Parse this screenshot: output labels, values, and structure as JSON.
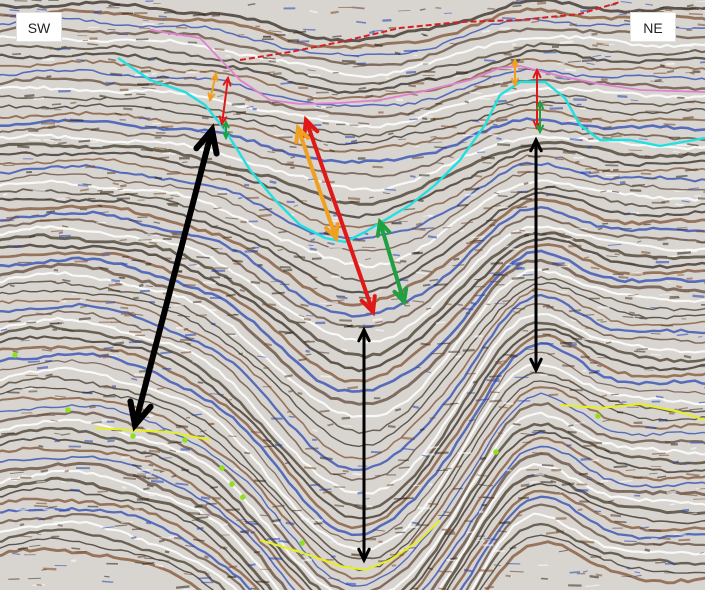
{
  "labels": {
    "southwest": "SW",
    "northeast": "NE"
  },
  "colors": {
    "background": "#d8d4cf",
    "reflector_dark": "#2a2016",
    "reflector_brown": "#7a4a2a",
    "reflector_blue": "#1f3fb0",
    "horizon_red": "#d42020",
    "horizon_pink": "#e080d0",
    "horizon_cyan": "#20e0e0",
    "horizon_yellow": "#e6f020",
    "marker_green": "#90e020",
    "arrow_black": "#000000",
    "arrow_red": "#e01818",
    "arrow_orange": "#f0a020",
    "arrow_green": "#20a040"
  },
  "icons": [
    "seismic-section-image",
    "thickness-arrow"
  ]
}
